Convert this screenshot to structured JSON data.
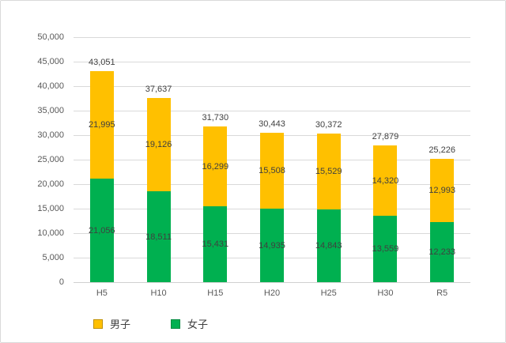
{
  "chart_data": {
    "type": "bar",
    "stacked": true,
    "title": "",
    "xlabel": "",
    "ylabel": "",
    "categories": [
      "H5",
      "H10",
      "H15",
      "H20",
      "H25",
      "H30",
      "R5"
    ],
    "series": [
      {
        "name": "女子",
        "color": "#00B050",
        "border_color": "#008A3E",
        "values": [
          21056,
          18511,
          15431,
          14935,
          14843,
          13559,
          12233
        ]
      },
      {
        "name": "男子",
        "color": "#FFC000",
        "border_color": "#BF9000",
        "values": [
          21995,
          19126,
          16299,
          15508,
          15529,
          14320,
          12993
        ]
      }
    ],
    "totals": [
      43051,
      37637,
      31730,
      30443,
      30372,
      27879,
      25226
    ],
    "total_labels": [
      "43,051",
      "37,637",
      "31,730",
      "30,443",
      "30,372",
      "27,879",
      "25,226"
    ],
    "segment_labels": {
      "男子": [
        "21,995",
        "19,126",
        "16,299",
        "15,508",
        "15,529",
        "14,320",
        "12,993"
      ],
      "女子": [
        "21,056",
        "18,511",
        "15,431",
        "14,935",
        "14,843",
        "13,559",
        "12,233"
      ]
    },
    "ylim": [
      0,
      50000
    ],
    "ytick_step": 5000,
    "ytick_labels": [
      "0",
      "5,000",
      "10,000",
      "15,000",
      "20,000",
      "25,000",
      "30,000",
      "35,000",
      "40,000",
      "45,000",
      "50,000"
    ],
    "grid": true,
    "legend_position": "bottom"
  },
  "legend": {
    "items": [
      {
        "label": "男子",
        "color": "#FFC000",
        "border_color": "#BF9000"
      },
      {
        "label": "女子",
        "color": "#00B050",
        "border_color": "#008A3E"
      }
    ]
  },
  "colors": {
    "background": "#FFFFFF",
    "frame_border": "#D9D9D9",
    "gridline": "#D9D9D9",
    "axis_text": "#595959",
    "data_label_text": "#404040"
  }
}
